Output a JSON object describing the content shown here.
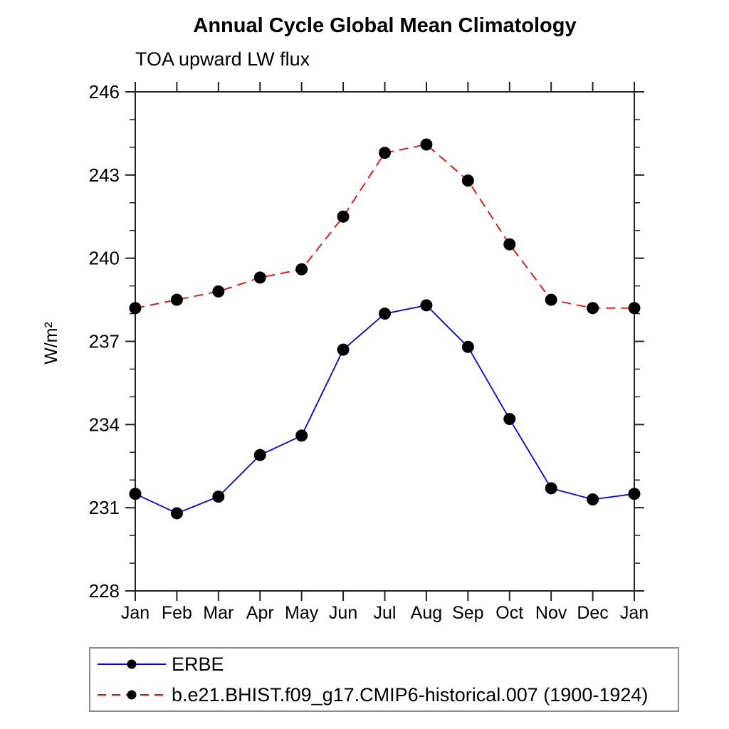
{
  "chart_data": {
    "type": "line",
    "title": "Annual Cycle Global Mean Climatology",
    "subtitle": "TOA upward LW flux",
    "ylabel": "W/m²",
    "xlabel": "",
    "categories": [
      "Jan",
      "Feb",
      "Mar",
      "Apr",
      "May",
      "Jun",
      "Jul",
      "Aug",
      "Sep",
      "Oct",
      "Nov",
      "Dec",
      "Jan"
    ],
    "series": [
      {
        "name": "ERBE",
        "color": "#0000ff",
        "line_style": "solid",
        "marker": "filled-circle",
        "marker_color": "#000000",
        "values": [
          231.5,
          230.8,
          231.4,
          232.9,
          233.6,
          236.7,
          238.0,
          238.3,
          236.8,
          234.2,
          231.7,
          231.3,
          231.5
        ]
      },
      {
        "name": "b.e21.BHIST.f09_g17.CMIP6-historical.007 (1900-1924)",
        "color": "#ff0000",
        "line_style": "dashed",
        "marker": "filled-circle",
        "marker_color": "#000000",
        "values": [
          238.2,
          238.5,
          238.8,
          239.3,
          239.6,
          241.5,
          243.8,
          244.1,
          242.8,
          240.5,
          238.5,
          238.2,
          238.2
        ]
      }
    ],
    "ylim": [
      228,
      246
    ],
    "yticks_major": [
      228,
      231,
      234,
      237,
      240,
      243,
      246
    ],
    "ytick_minor_step": 1,
    "grid": false,
    "legend_position": "bottom-left-box",
    "axis_color": "#222222",
    "text_color": "#000000"
  }
}
